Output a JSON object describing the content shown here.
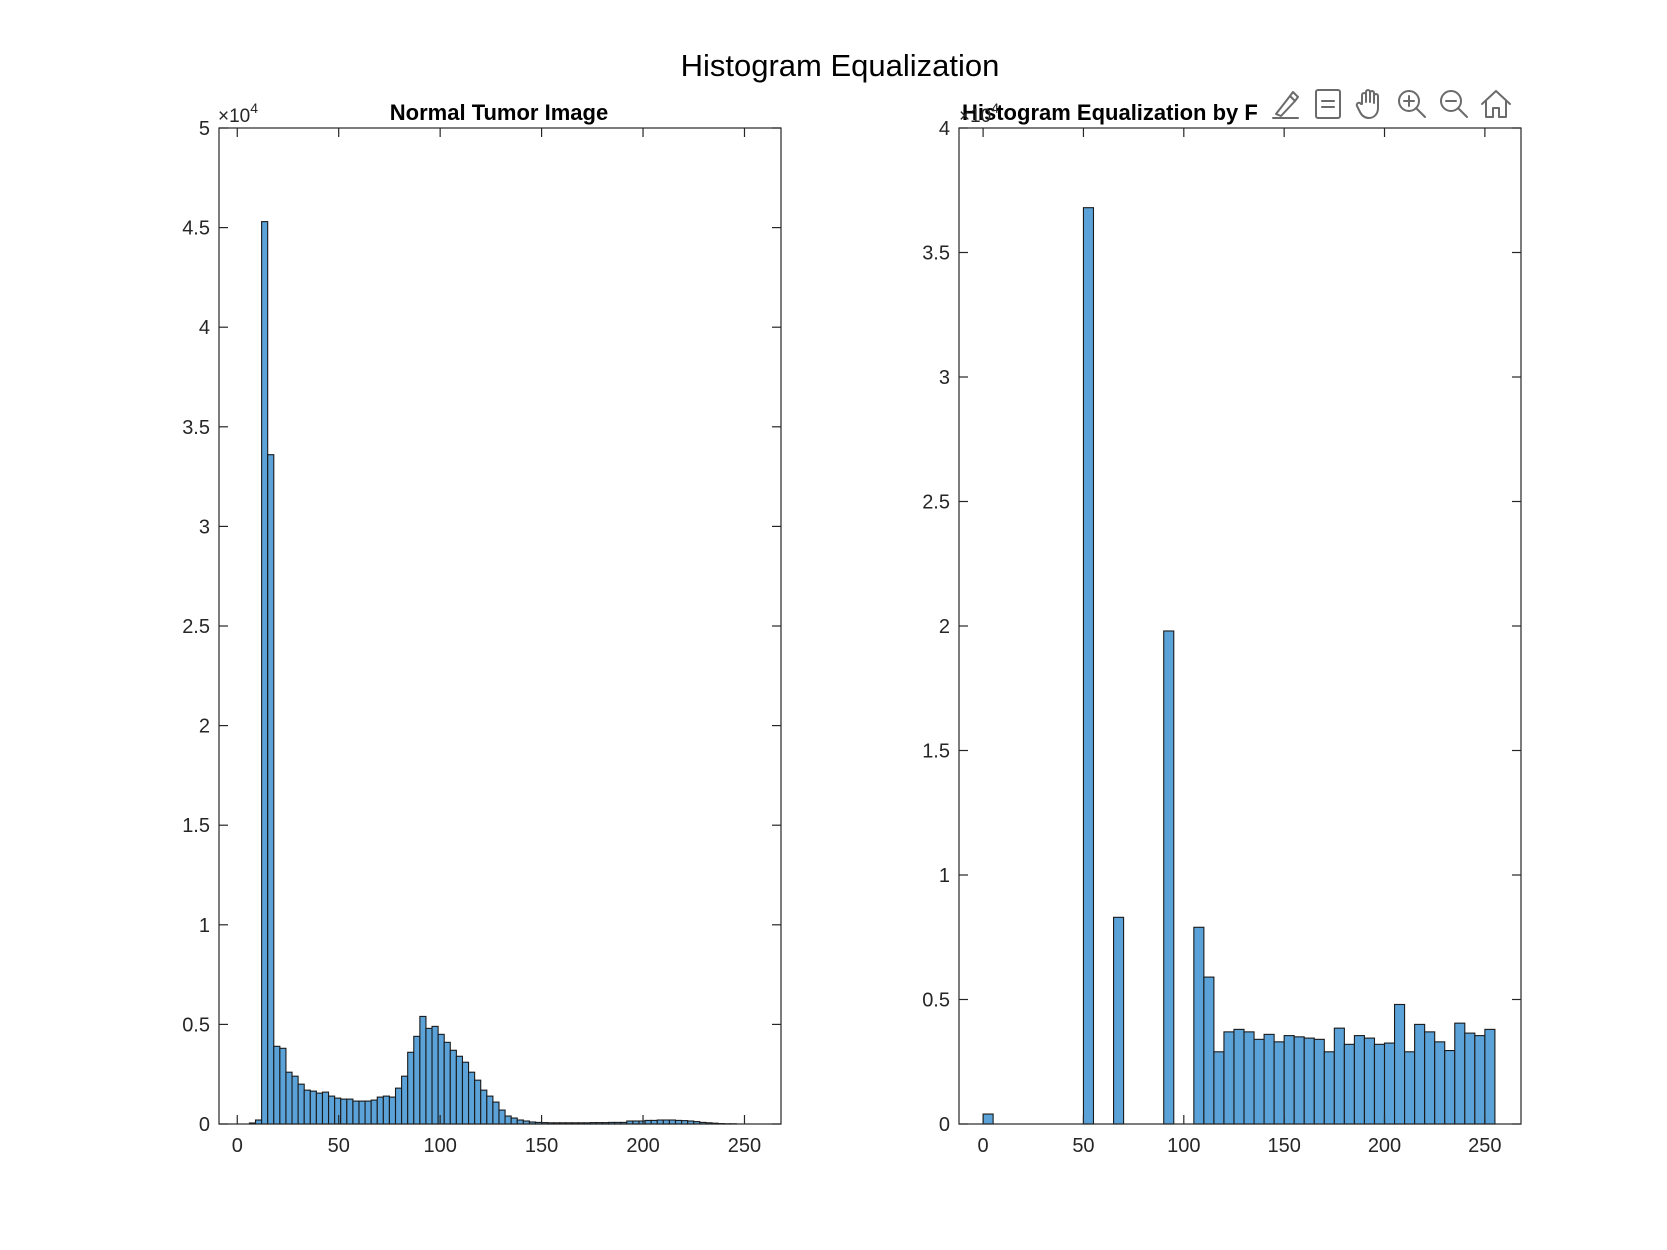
{
  "figure": {
    "suptitle": "Histogram Equalization",
    "toolbar": [
      {
        "icon": "brush-icon"
      },
      {
        "icon": "data-tips-icon"
      },
      {
        "icon": "pan-hand-icon"
      },
      {
        "icon": "zoom-in-icon"
      },
      {
        "icon": "zoom-out-icon"
      },
      {
        "icon": "home-icon"
      }
    ],
    "colors": {
      "bar_fill": "#5aa2d7",
      "bar_edge": "#1a1a1a",
      "axis": "#262626"
    }
  },
  "chart_data": [
    {
      "type": "bar",
      "title": "Normal Tumor Image",
      "xlabel": "",
      "ylabel": "",
      "xlim": [
        -9,
        268
      ],
      "ylim": [
        0,
        50000
      ],
      "xticks": [
        0,
        50,
        100,
        150,
        200,
        250
      ],
      "yticks": [
        0,
        5000,
        10000,
        15000,
        20000,
        25000,
        30000,
        35000,
        40000,
        45000,
        50000
      ],
      "ytick_labels": [
        "0",
        "0.5",
        "1",
        "1.5",
        "2",
        "2.5",
        "3",
        "3.5",
        "4",
        "4.5",
        "5"
      ],
      "multiplier": "×10",
      "multiplier_exp": "4",
      "bin_width": 3,
      "bin_start": 6,
      "values": [
        50,
        200,
        45300,
        33600,
        3900,
        3800,
        2600,
        2400,
        2000,
        1700,
        1650,
        1550,
        1600,
        1400,
        1300,
        1250,
        1250,
        1150,
        1150,
        1150,
        1200,
        1350,
        1400,
        1350,
        1800,
        2400,
        3600,
        4400,
        5400,
        4800,
        4900,
        4500,
        4100,
        3700,
        3400,
        3100,
        2600,
        2200,
        1700,
        1400,
        1100,
        700,
        400,
        300,
        200,
        150,
        100,
        80,
        70,
        60,
        60,
        60,
        60,
        60,
        60,
        60,
        70,
        70,
        70,
        80,
        80,
        80,
        150,
        150,
        150,
        180,
        180,
        200,
        200,
        200,
        180,
        170,
        150,
        120,
        80,
        60,
        40,
        20,
        10,
        10,
        0,
        0,
        0,
        0
      ]
    },
    {
      "type": "bar",
      "title": "Histogram Equalization by F",
      "xlabel": "",
      "ylabel": "",
      "xlim": [
        -12,
        268
      ],
      "ylim": [
        0,
        40000
      ],
      "xticks": [
        0,
        50,
        100,
        150,
        200,
        250
      ],
      "yticks": [
        0,
        5000,
        10000,
        15000,
        20000,
        25000,
        30000,
        35000,
        40000
      ],
      "ytick_labels": [
        "0",
        "0.5",
        "1",
        "1.5",
        "2",
        "2.5",
        "3",
        "3.5",
        "4"
      ],
      "multiplier": "×10",
      "multiplier_exp": "4",
      "bin_width": 5,
      "bin_start": 0,
      "values": [
        400,
        0,
        0,
        0,
        0,
        0,
        0,
        0,
        0,
        0,
        36800,
        0,
        0,
        8300,
        0,
        0,
        0,
        0,
        19800,
        0,
        0,
        7900,
        5900,
        2900,
        3700,
        3800,
        3700,
        3400,
        3600,
        3300,
        3550,
        3500,
        3450,
        3400,
        2900,
        3850,
        3200,
        3550,
        3450,
        3200,
        3250,
        4800,
        2900,
        4000,
        3700,
        3300,
        2950,
        4050,
        3650,
        3550,
        3800
      ]
    }
  ]
}
